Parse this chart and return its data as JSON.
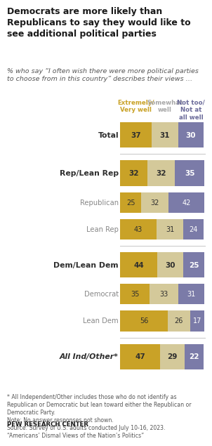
{
  "title": "Democrats are more likely than\nRepublicans to say they would like to\nsee additional political parties",
  "subtitle": "% who say “I often wish there were more political parties\nto choose from in this country” describes their views …",
  "col_headers": [
    "Extremely/\nVery well",
    "Somewhat\nwell",
    "Not too/\nNot at\nall well"
  ],
  "col_header_colors": [
    "#C9A227",
    "#A8A8A8",
    "#6B6B9A"
  ],
  "categories": [
    "Total",
    "Rep/Lean Rep",
    "Republican",
    "Lean Rep",
    "Dem/Lean Dem",
    "Democrat",
    "Lean Dem",
    "All Ind/Other*"
  ],
  "bold_rows": [
    0,
    1,
    4,
    7
  ],
  "italic_rows": [
    7
  ],
  "sub_rows": [
    2,
    3,
    5,
    6
  ],
  "values": [
    [
      37,
      31,
      30
    ],
    [
      32,
      32,
      35
    ],
    [
      25,
      32,
      42
    ],
    [
      43,
      31,
      24
    ],
    [
      44,
      30,
      25
    ],
    [
      35,
      33,
      31
    ],
    [
      56,
      26,
      17
    ],
    [
      47,
      29,
      22
    ]
  ],
  "bar_colors": [
    "#C9A227",
    "#D4C99A",
    "#7B7BA8"
  ],
  "footnote": "* All Independent/Other includes those who do not identify as\nRepublican or Democratic but lean toward either the Republican or\nDemocratic Party.\nNote: No answer responses not shown.\nSource: Survey of U.S. adults conducted July 10-16, 2023.\n“Americans’ Dismal Views of the Nation’s Politics”",
  "source_bold": "PEW RESEARCH CENTER",
  "background_color": "#FFFFFF",
  "text_color_dark": "#2E2E2E",
  "text_color_sub": "#888888"
}
